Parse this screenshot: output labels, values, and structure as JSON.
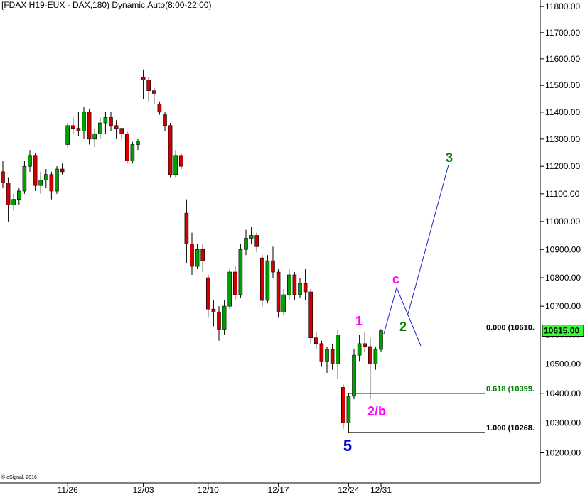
{
  "chart_data": {
    "type": "candlestick",
    "title": "[FDAX H19-EUX - DAX,180) Dynamic,Auto(8:00-22:00)",
    "footer": "© eSignal, 2016",
    "log": true,
    "up_color": "#00a000",
    "down_color": "#d00000",
    "categories": [
      null,
      null,
      null,
      null,
      null,
      null,
      null,
      null,
      null,
      null,
      null,
      null,
      "11/26",
      null,
      null,
      null,
      null,
      null,
      null,
      null,
      null,
      null,
      null,
      null,
      null,
      null,
      "12/03",
      null,
      null,
      null,
      null,
      null,
      null,
      null,
      null,
      null,
      null,
      null,
      "12/10",
      null,
      null,
      null,
      null,
      null,
      null,
      null,
      null,
      null,
      null,
      null,
      null,
      "12/17",
      null,
      null,
      null,
      null,
      null,
      null,
      null,
      null,
      null,
      null,
      null,
      null,
      "12/24",
      null,
      null,
      null,
      null,
      null,
      "12/31"
    ],
    "open": [
      11180,
      11140,
      11060,
      11080,
      11110,
      11200,
      11240,
      11130,
      11150,
      11170,
      11110,
      11190,
      11280,
      11350,
      11340,
      11330,
      11400,
      11300,
      11320,
      11360,
      11380,
      11350,
      11340,
      11320,
      11220,
      11280,
      11530,
      11520,
      11480,
      11430,
      11390,
      11350,
      11170,
      11240,
      11030,
      10920,
      10840,
      10900,
      10800,
      10690,
      10680,
      10620,
      10700,
      10820,
      10740,
      10900,
      10940,
      10950,
      10870,
      10720,
      10860,
      10820,
      10680,
      10740,
      10810,
      10740,
      10780,
      10750,
      10590,
      10570,
      10510,
      10550,
      10500,
      10420,
      10300,
      10390,
      10530,
      10570,
      10560,
      10500,
      10550
    ],
    "high": [
      11220,
      11160,
      11100,
      11120,
      11220,
      11260,
      11250,
      11180,
      11190,
      11180,
      11200,
      11210,
      11360,
      11380,
      11400,
      11420,
      11410,
      11340,
      11380,
      11400,
      11400,
      11370,
      11340,
      11330,
      11290,
      11300,
      11560,
      11530,
      11490,
      11440,
      11400,
      11360,
      11260,
      11250,
      11080,
      10960,
      10920,
      10920,
      10810,
      10720,
      10700,
      10720,
      10830,
      10840,
      10920,
      10970,
      10980,
      10960,
      10880,
      10880,
      10910,
      10830,
      10760,
      10830,
      10820,
      10800,
      10830,
      10760,
      10610,
      10580,
      10560,
      10570,
      10620,
      10430,
      10400,
      10550,
      10600,
      10610,
      10590,
      10560,
      10620
    ],
    "low": [
      11120,
      11000,
      11040,
      11060,
      11100,
      11180,
      11110,
      11100,
      11120,
      11080,
      11100,
      11170,
      11270,
      11320,
      11310,
      11300,
      11280,
      11270,
      11300,
      11320,
      11330,
      11300,
      11300,
      11210,
      11210,
      11260,
      11450,
      11440,
      11430,
      11390,
      11330,
      11160,
      11160,
      11190,
      10850,
      10810,
      10830,
      10820,
      10660,
      10630,
      10580,
      10600,
      10690,
      10720,
      10730,
      10880,
      10920,
      10890,
      10700,
      10710,
      10800,
      10660,
      10670,
      10720,
      10720,
      10730,
      10720,
      10570,
      10550,
      10490,
      10470,
      10480,
      10450,
      10280,
      10268,
      10380,
      10510,
      10540,
      10380,
      10480,
      10540
    ],
    "close": [
      11140,
      11060,
      11080,
      11110,
      11200,
      11240,
      11130,
      11150,
      11170,
      11110,
      11190,
      11180,
      11350,
      11340,
      11330,
      11400,
      11300,
      11320,
      11360,
      11380,
      11350,
      11340,
      11320,
      11220,
      11280,
      11290,
      11520,
      11480,
      11470,
      11400,
      11350,
      11170,
      11240,
      11200,
      10920,
      10840,
      10900,
      10860,
      10690,
      10680,
      10620,
      10700,
      10820,
      10740,
      10900,
      10940,
      10950,
      10910,
      10720,
      10860,
      10820,
      10680,
      10740,
      10810,
      10740,
      10780,
      10750,
      10590,
      10570,
      10510,
      10550,
      10500,
      10600,
      10300,
      10390,
      10530,
      10570,
      10560,
      10500,
      10550,
      10615
    ],
    "ylim": [
      10100,
      11825
    ],
    "yticks": [
      {
        "value": 10200,
        "label": "10200.00"
      },
      {
        "value": 10300,
        "label": "10300.00"
      },
      {
        "value": 10400,
        "label": "10400.00"
      },
      {
        "value": 10500,
        "label": "10500.00"
      },
      {
        "value": 10600,
        "label": "10600.00"
      },
      {
        "value": 10700,
        "label": "10700.00"
      },
      {
        "value": 10800,
        "label": "10800.00"
      },
      {
        "value": 10900,
        "label": "10900.00"
      },
      {
        "value": 11000,
        "label": "11000.00"
      },
      {
        "value": 11100,
        "label": "11100.00"
      },
      {
        "value": 11200,
        "label": "11200.00"
      },
      {
        "value": 11300,
        "label": "11300.00"
      },
      {
        "value": 11400,
        "label": "11400.00"
      },
      {
        "value": 11500,
        "label": "11500.00"
      },
      {
        "value": 11600,
        "label": "11600.00"
      },
      {
        "value": 11700,
        "label": "11700.00"
      },
      {
        "value": 11800,
        "label": "11800.00"
      }
    ],
    "last_price": {
      "value": 10615,
      "label": "10615.00",
      "color": "#33ff33"
    },
    "fib_levels": [
      {
        "value": 10610,
        "label": "0.000 (10610.",
        "color": "#000000"
      },
      {
        "value": 10399,
        "label": "0.618 (10399.",
        "color": "#008000"
      },
      {
        "value": 10268,
        "label": "1.000 (10268.",
        "color": "#000000"
      }
    ],
    "annotations": [
      {
        "text": "1",
        "color": "#ff00ff"
      },
      {
        "text": "2/b",
        "color": "#ff00ff"
      },
      {
        "text": "5",
        "color": "#0000dd"
      },
      {
        "text": "c",
        "color": "#ff00ff"
      },
      {
        "text": "2",
        "color": "#008000"
      },
      {
        "text": "3",
        "color": "#008000"
      }
    ]
  }
}
